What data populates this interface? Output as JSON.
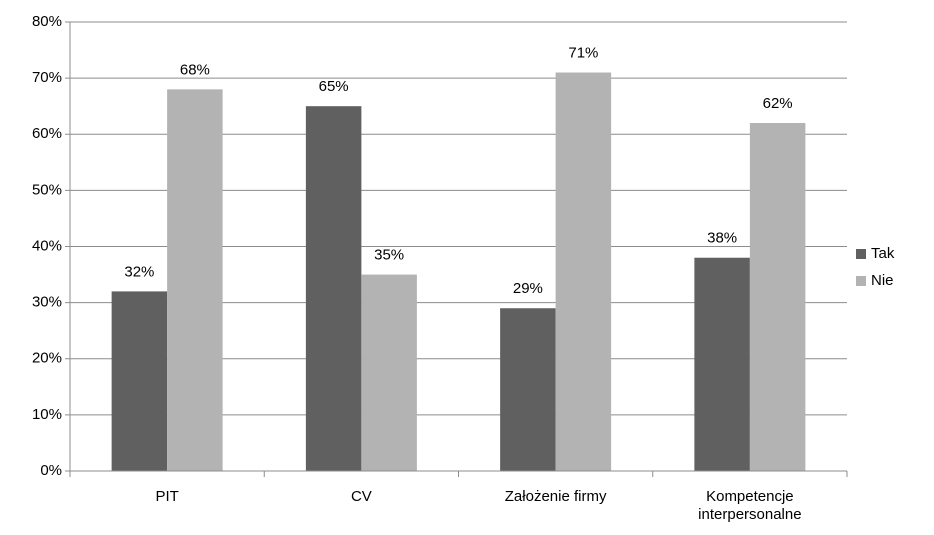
{
  "chart_data": {
    "type": "bar",
    "categories": [
      "PIT",
      "CV",
      "Założenie firmy",
      "Kompetencje interpersonalne"
    ],
    "series": [
      {
        "name": "Tak",
        "color": "#606060",
        "values": [
          32,
          65,
          29,
          38
        ],
        "value_labels": [
          "32%",
          "65%",
          "29%",
          "38%"
        ]
      },
      {
        "name": "Nie",
        "color": "#b3b3b3",
        "values": [
          68,
          35,
          71,
          62
        ],
        "value_labels": [
          "68%",
          "35%",
          "71%",
          "62%"
        ]
      }
    ],
    "ylim": [
      0,
      80
    ],
    "yticks": [
      {
        "value": 0,
        "label": "0%"
      },
      {
        "value": 10,
        "label": "10%"
      },
      {
        "value": 20,
        "label": "20%"
      },
      {
        "value": 30,
        "label": "30%"
      },
      {
        "value": 40,
        "label": "40%"
      },
      {
        "value": 50,
        "label": "50%"
      },
      {
        "value": 60,
        "label": "60%"
      },
      {
        "value": 70,
        "label": "70%"
      },
      {
        "value": 80,
        "label": "80%"
      }
    ],
    "grid": true,
    "legend": "right"
  }
}
